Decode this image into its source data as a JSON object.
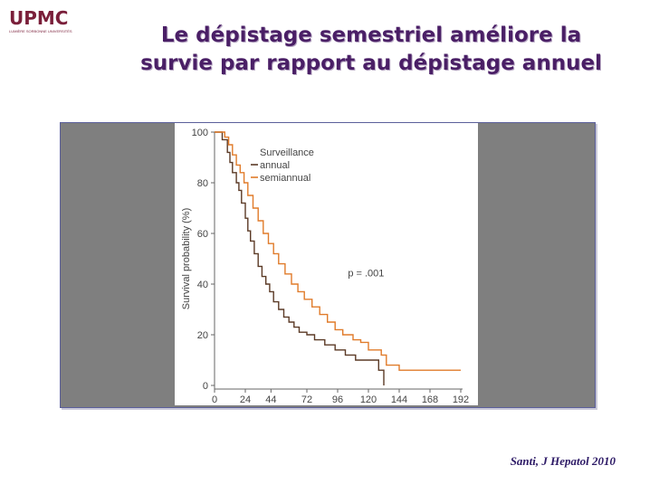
{
  "logo": {
    "text": "UPMC",
    "subtitle": "LUMIÈRE SORBONNE UNIVERSITÉS"
  },
  "slide": {
    "title_line1": "Le dépistage semestriel améliore la",
    "title_line2": "survie par rapport au dépistage annuel",
    "citation": "Santi, J Hepatol 2010"
  },
  "colors": {
    "annual": "#5b3a26",
    "semiannual": "#e07b2a",
    "frame_bg": "#7f7f7f",
    "title": "#4a1f66"
  },
  "chart_data": {
    "type": "line",
    "title": "",
    "xlabel": "",
    "ylabel": "Survival probability (%)",
    "xlim": [
      0,
      192
    ],
    "ylim": [
      0,
      100
    ],
    "x_ticks": [
      0,
      24,
      44,
      72,
      96,
      120,
      144,
      168,
      192
    ],
    "y_ticks": [
      0,
      20,
      40,
      60,
      80,
      100
    ],
    "legend_title": "Surveillance",
    "legend_position": "top-right",
    "annotation": "p = .001",
    "series": [
      {
        "name": "annual",
        "color": "#5b3a26",
        "points": [
          [
            0,
            100
          ],
          [
            6,
            100
          ],
          [
            6,
            97
          ],
          [
            10,
            97
          ],
          [
            10,
            92
          ],
          [
            12,
            92
          ],
          [
            12,
            88
          ],
          [
            14,
            88
          ],
          [
            14,
            84
          ],
          [
            17,
            84
          ],
          [
            17,
            80
          ],
          [
            19,
            80
          ],
          [
            19,
            77
          ],
          [
            21,
            77
          ],
          [
            21,
            72
          ],
          [
            24,
            72
          ],
          [
            24,
            66
          ],
          [
            26,
            66
          ],
          [
            26,
            61
          ],
          [
            28,
            61
          ],
          [
            28,
            57
          ],
          [
            31,
            57
          ],
          [
            31,
            52
          ],
          [
            34,
            52
          ],
          [
            34,
            47
          ],
          [
            37,
            47
          ],
          [
            37,
            43
          ],
          [
            40,
            43
          ],
          [
            40,
            40
          ],
          [
            43,
            40
          ],
          [
            43,
            37
          ],
          [
            46,
            37
          ],
          [
            46,
            33
          ],
          [
            50,
            33
          ],
          [
            50,
            30
          ],
          [
            54,
            30
          ],
          [
            54,
            27
          ],
          [
            58,
            27
          ],
          [
            58,
            25
          ],
          [
            62,
            25
          ],
          [
            62,
            23
          ],
          [
            66,
            23
          ],
          [
            66,
            21
          ],
          [
            72,
            21
          ],
          [
            72,
            20
          ],
          [
            78,
            20
          ],
          [
            78,
            18
          ],
          [
            86,
            18
          ],
          [
            86,
            16
          ],
          [
            94,
            16
          ],
          [
            94,
            14
          ],
          [
            102,
            14
          ],
          [
            102,
            12
          ],
          [
            110,
            12
          ],
          [
            110,
            10
          ],
          [
            128,
            10
          ],
          [
            128,
            6
          ],
          [
            132,
            6
          ],
          [
            132,
            0
          ]
        ]
      },
      {
        "name": "semiannual",
        "color": "#e07b2a",
        "points": [
          [
            0,
            100
          ],
          [
            8,
            100
          ],
          [
            8,
            98
          ],
          [
            11,
            98
          ],
          [
            11,
            95
          ],
          [
            14,
            95
          ],
          [
            14,
            91
          ],
          [
            17,
            91
          ],
          [
            17,
            87
          ],
          [
            20,
            87
          ],
          [
            20,
            84
          ],
          [
            23,
            84
          ],
          [
            23,
            80
          ],
          [
            26,
            80
          ],
          [
            26,
            75
          ],
          [
            30,
            75
          ],
          [
            30,
            70
          ],
          [
            34,
            70
          ],
          [
            34,
            65
          ],
          [
            38,
            65
          ],
          [
            38,
            60
          ],
          [
            42,
            60
          ],
          [
            42,
            56
          ],
          [
            46,
            56
          ],
          [
            46,
            52
          ],
          [
            50,
            52
          ],
          [
            50,
            48
          ],
          [
            55,
            48
          ],
          [
            55,
            44
          ],
          [
            60,
            44
          ],
          [
            60,
            40
          ],
          [
            65,
            40
          ],
          [
            65,
            37
          ],
          [
            70,
            37
          ],
          [
            70,
            34
          ],
          [
            76,
            34
          ],
          [
            76,
            31
          ],
          [
            82,
            31
          ],
          [
            82,
            28
          ],
          [
            88,
            28
          ],
          [
            88,
            25
          ],
          [
            94,
            25
          ],
          [
            94,
            22
          ],
          [
            100,
            22
          ],
          [
            100,
            20
          ],
          [
            108,
            20
          ],
          [
            108,
            18
          ],
          [
            114,
            18
          ],
          [
            114,
            17
          ],
          [
            120,
            17
          ],
          [
            120,
            14
          ],
          [
            130,
            14
          ],
          [
            130,
            12
          ],
          [
            134,
            12
          ],
          [
            134,
            8
          ],
          [
            144,
            8
          ],
          [
            144,
            6
          ],
          [
            192,
            6
          ]
        ]
      }
    ]
  }
}
